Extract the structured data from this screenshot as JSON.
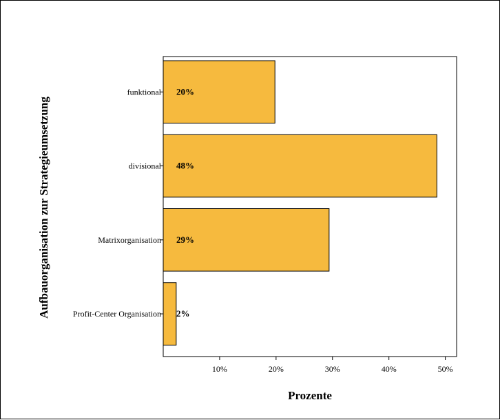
{
  "chart_data": {
    "type": "bar",
    "orientation": "horizontal",
    "title": "",
    "xlabel": "Prozente",
    "ylabel": "Aufbauorganisation zur Strategieumsetzung",
    "categories": [
      "funktional",
      "divisional",
      "Matrixorganisation",
      "Profit-Center Organisation"
    ],
    "values": [
      19.8,
      48.5,
      29.4,
      2.3
    ],
    "data_labels": [
      "20%",
      "48%",
      "29%",
      "2%"
    ],
    "xlim": [
      0,
      52
    ],
    "xticks": [
      10,
      20,
      30,
      40,
      50
    ],
    "xtick_labels": [
      "10%",
      "20%",
      "30%",
      "40%",
      "50%"
    ],
    "bar_color": "#F6BA3E",
    "bar_edge_color": "#000000",
    "grid": false,
    "legend": "none"
  }
}
